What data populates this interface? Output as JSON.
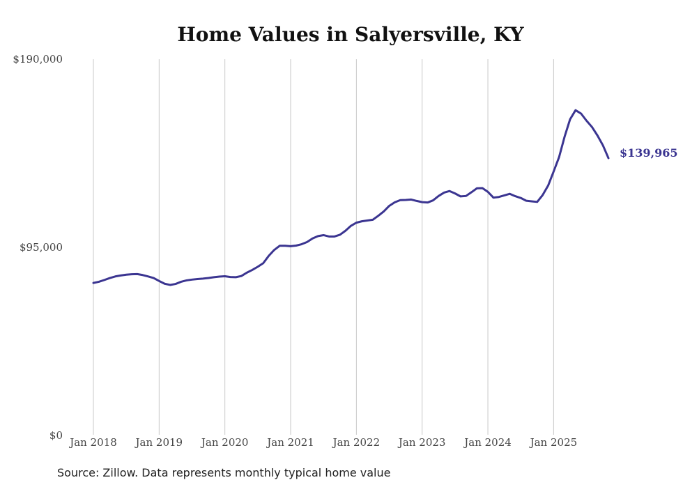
{
  "chart_data": {
    "type": "line",
    "title": "Home Values in Salyersville, KY",
    "source": "Source: Zillow. Data represents monthly typical home value",
    "ylim": [
      0,
      190000
    ],
    "y_ticks": [
      {
        "value": 0,
        "label": "$0"
      },
      {
        "value": 95000,
        "label": "$95,000"
      },
      {
        "value": 190000,
        "label": "$190,000"
      }
    ],
    "x_ticks": [
      {
        "value": 2018,
        "label": "Jan 2018"
      },
      {
        "value": 2019,
        "label": "Jan 2019"
      },
      {
        "value": 2020,
        "label": "Jan 2020"
      },
      {
        "value": 2021,
        "label": "Jan 2021"
      },
      {
        "value": 2022,
        "label": "Jan 2022"
      },
      {
        "value": 2023,
        "label": "Jan 2023"
      },
      {
        "value": 2024,
        "label": "Jan 2024"
      },
      {
        "value": 2025,
        "label": "Jan 2025"
      }
    ],
    "xlim": [
      2018,
      2025.8333
    ],
    "grid": "vertical",
    "line_color": "#3b3591",
    "end_label": "$139,965",
    "series": [
      {
        "name": "Typical home value",
        "x": [
          2018.0,
          2018.0833,
          2018.1667,
          2018.25,
          2018.3333,
          2018.4167,
          2018.5,
          2018.5833,
          2018.6667,
          2018.75,
          2018.8333,
          2018.9167,
          2019.0,
          2019.0833,
          2019.1667,
          2019.25,
          2019.3333,
          2019.4167,
          2019.5,
          2019.5833,
          2019.6667,
          2019.75,
          2019.8333,
          2019.9167,
          2020.0,
          2020.0833,
          2020.1667,
          2020.25,
          2020.3333,
          2020.4167,
          2020.5,
          2020.5833,
          2020.6667,
          2020.75,
          2020.8333,
          2020.9167,
          2021.0,
          2021.0833,
          2021.1667,
          2021.25,
          2021.3333,
          2021.4167,
          2021.5,
          2021.5833,
          2021.6667,
          2021.75,
          2021.8333,
          2021.9167,
          2022.0,
          2022.0833,
          2022.1667,
          2022.25,
          2022.3333,
          2022.4167,
          2022.5,
          2022.5833,
          2022.6667,
          2022.75,
          2022.8333,
          2022.9167,
          2023.0,
          2023.0833,
          2023.1667,
          2023.25,
          2023.3333,
          2023.4167,
          2023.5,
          2023.5833,
          2023.6667,
          2023.75,
          2023.8333,
          2023.9167,
          2024.0,
          2024.0833,
          2024.1667,
          2024.25,
          2024.3333,
          2024.4167,
          2024.5,
          2024.5833,
          2024.6667,
          2024.75,
          2024.8333,
          2024.9167,
          2025.0,
          2025.0833,
          2025.1667,
          2025.25,
          2025.3333,
          2025.4167,
          2025.5,
          2025.5833,
          2025.6667,
          2025.75,
          2025.8333
        ],
        "values": [
          76800,
          77400,
          78300,
          79300,
          80100,
          80600,
          81000,
          81200,
          81300,
          80800,
          80100,
          79300,
          77800,
          76400,
          75800,
          76300,
          77400,
          78100,
          78500,
          78800,
          79000,
          79300,
          79700,
          80000,
          80200,
          79800,
          79700,
          80300,
          82000,
          83400,
          85000,
          86800,
          90500,
          93500,
          95600,
          95600,
          95400,
          95700,
          96400,
          97500,
          99300,
          100500,
          101000,
          100300,
          100300,
          101200,
          103200,
          105700,
          107300,
          108000,
          108400,
          108800,
          110800,
          113000,
          115800,
          117600,
          118700,
          118800,
          119000,
          118300,
          117700,
          117500,
          118600,
          120800,
          122500,
          123300,
          122100,
          120600,
          120800,
          122700,
          124700,
          124800,
          122900,
          120000,
          120300,
          121100,
          121900,
          120700,
          119800,
          118400,
          118100,
          117800,
          121300,
          126100,
          133200,
          140500,
          150800,
          159600,
          164200,
          162500,
          158900,
          155700,
          151400,
          146400,
          139965
        ]
      }
    ]
  }
}
